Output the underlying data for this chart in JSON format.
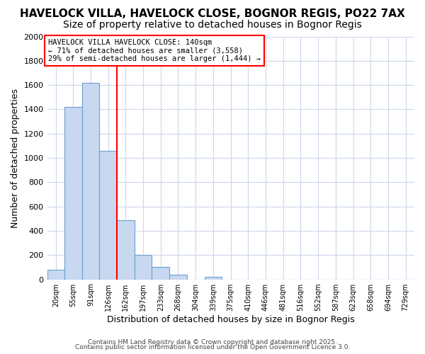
{
  "title1": "HAVELOCK VILLA, HAVELOCK CLOSE, BOGNOR REGIS, PO22 7AX",
  "title2": "Size of property relative to detached houses in Bognor Regis",
  "xlabel": "Distribution of detached houses by size in Bognor Regis",
  "ylabel": "Number of detached properties",
  "bin_labels": [
    "20sqm",
    "55sqm",
    "91sqm",
    "126sqm",
    "162sqm",
    "197sqm",
    "233sqm",
    "268sqm",
    "304sqm",
    "339sqm",
    "375sqm",
    "410sqm",
    "446sqm",
    "481sqm",
    "516sqm",
    "552sqm",
    "587sqm",
    "623sqm",
    "658sqm",
    "694sqm",
    "729sqm"
  ],
  "bin_left_edges": [
    2.5,
    37.5,
    73.0,
    108.5,
    144.0,
    179.5,
    215.0,
    250.5,
    286.0,
    321.5,
    357.0,
    392.5,
    428.0,
    463.5,
    499.0,
    534.5,
    570.0,
    605.5,
    641.0,
    676.5,
    712.0
  ],
  "bin_width": 35.5,
  "values": [
    80,
    1420,
    1620,
    1060,
    490,
    200,
    105,
    40,
    0,
    20,
    0,
    0,
    0,
    0,
    0,
    0,
    0,
    0,
    0,
    0,
    0
  ],
  "bar_color": "#c8d8f0",
  "bar_edge_color": "#6ba0d0",
  "red_line_x": 143.5,
  "ylim": [
    0,
    2000
  ],
  "xlim_left": 2.5,
  "xlim_right": 747.5,
  "yticks": [
    0,
    200,
    400,
    600,
    800,
    1000,
    1200,
    1400,
    1600,
    1800,
    2000
  ],
  "annotation_text": "HAVELOCK VILLA HAVELOCK CLOSE: 140sqm\n← 71% of detached houses are smaller (3,558)\n29% of semi-detached houses are larger (1,444) →",
  "annotation_box_color": "white",
  "annotation_box_edge_color": "red",
  "footer1": "Contains HM Land Registry data © Crown copyright and database right 2025.",
  "footer2": "Contains public sector information licensed under the Open Government Licence 3.0.",
  "bg_color": "#ffffff",
  "plot_bg_color": "#ffffff",
  "grid_color": "#ccd8ec",
  "title1_fontsize": 11,
  "title2_fontsize": 10,
  "axis_label_fontsize": 9
}
